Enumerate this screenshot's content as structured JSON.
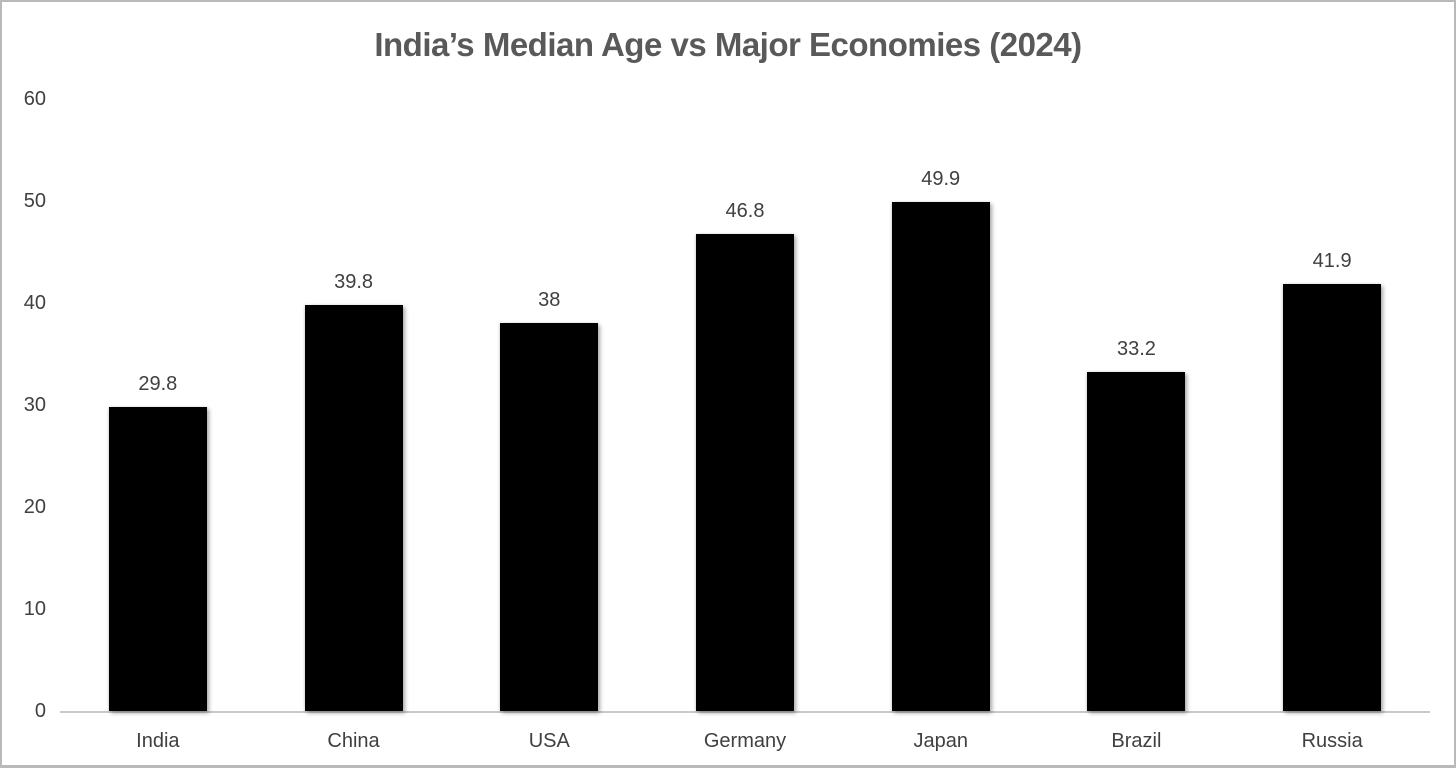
{
  "chart_data": {
    "type": "bar",
    "title": "India’s Median Age vs Major Economies (2024)",
    "categories": [
      "India",
      "China",
      "USA",
      "Germany",
      "Japan",
      "Brazil",
      "Russia"
    ],
    "values": [
      29.8,
      39.8,
      38,
      46.8,
      49.9,
      33.2,
      41.9
    ],
    "value_labels": [
      "29.8",
      "39.8",
      "38",
      "46.8",
      "49.9",
      "33.2",
      "41.9"
    ],
    "xlabel": "",
    "ylabel": "",
    "ylim": [
      0,
      60
    ],
    "y_ticks": [
      0,
      10,
      20,
      30,
      40,
      50,
      60
    ],
    "grid": false,
    "legend": false,
    "colors": {
      "bar": "#000000",
      "title": "#595959",
      "labels": "#404040",
      "axis_line": "#c9c9c9",
      "background": "#ffffff",
      "frame_border": "#b9b9b9"
    }
  }
}
